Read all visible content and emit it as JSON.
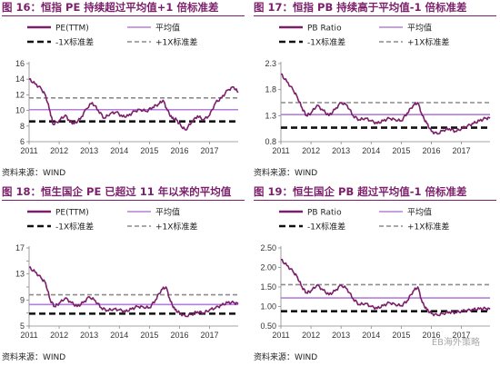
{
  "watermark": "EB海外策略",
  "panels": [
    {
      "title": "图 16：恒指 PE 持续超过平均值+1 倍标准差",
      "source": "资料来源：WIND",
      "chart_data": {
        "type": "line",
        "yticks": [
          6,
          8,
          10,
          12,
          14,
          16
        ],
        "ylim": [
          6,
          16
        ],
        "xticks": [
          "2011",
          "2012",
          "2013",
          "2014",
          "2015",
          "2016",
          "2017"
        ],
        "xlim": [
          2011.0,
          2017.95
        ],
        "legend": [
          {
            "label": "PE(TTM)",
            "color": "#7b1f6b",
            "style": "solid-thick"
          },
          {
            "label": "平均值",
            "color": "#b57edc",
            "style": "solid"
          },
          {
            "label": "-1X标准差",
            "color": "#111111",
            "style": "dash-thick"
          },
          {
            "label": "+1X标准差",
            "color": "#8c8c8c",
            "style": "dash"
          }
        ],
        "mean": 10.1,
        "minus1": 8.6,
        "plus1": 11.6,
        "series": [
          {
            "name": "PE(TTM)",
            "x": [
              2011.0,
              2011.2,
              2011.4,
              2011.55,
              2011.7,
              2011.8,
              2012.0,
              2012.2,
              2012.35,
              2012.5,
              2012.7,
              2012.9,
              2013.1,
              2013.3,
              2013.5,
              2013.7,
              2013.9,
              2014.1,
              2014.3,
              2014.5,
              2014.7,
              2014.9,
              2015.1,
              2015.3,
              2015.45,
              2015.6,
              2015.75,
              2015.9,
              2016.05,
              2016.2,
              2016.4,
              2016.6,
              2016.8,
              2017.0,
              2017.2,
              2017.4,
              2017.6,
              2017.8,
              2017.95
            ],
            "y": [
              14.0,
              13.4,
              12.8,
              11.9,
              9.8,
              8.2,
              8.7,
              9.4,
              8.6,
              8.3,
              8.9,
              10.2,
              11.0,
              10.0,
              9.0,
              9.6,
              9.8,
              9.2,
              9.3,
              9.9,
              10.1,
              9.9,
              10.4,
              10.8,
              11.3,
              10.0,
              9.0,
              8.8,
              8.0,
              7.5,
              8.5,
              9.3,
              8.8,
              9.4,
              11.0,
              11.6,
              12.6,
              13.0,
              12.3
            ]
          }
        ]
      }
    },
    {
      "title": "图 17：恒指 PB 持续高于平均值-1 倍标准差",
      "source": "资料来源：WIND",
      "chart_data": {
        "type": "line",
        "yticks": [
          0.8,
          1.3,
          1.8,
          2.3
        ],
        "ylim": [
          0.8,
          2.3
        ],
        "xticks": [
          "2011",
          "2012",
          "2013",
          "2014",
          "2015",
          "2016",
          "2017"
        ],
        "xlim": [
          2011.0,
          2017.95
        ],
        "legend": [
          {
            "label": "PB Ratio",
            "color": "#7b1f6b",
            "style": "solid-thick"
          },
          {
            "label": "平均值",
            "color": "#b57edc",
            "style": "solid"
          },
          {
            "label": "-1X标准差",
            "color": "#111111",
            "style": "dash-thick"
          },
          {
            "label": "+1X标准差",
            "color": "#8c8c8c",
            "style": "dash"
          }
        ],
        "mean": 1.32,
        "minus1": 1.07,
        "plus1": 1.55,
        "series": [
          {
            "name": "PB Ratio",
            "x": [
              2011.0,
              2011.2,
              2011.4,
              2011.55,
              2011.7,
              2011.85,
              2012.0,
              2012.2,
              2012.4,
              2012.6,
              2012.8,
              2013.0,
              2013.2,
              2013.4,
              2013.6,
              2013.8,
              2014.0,
              2014.2,
              2014.4,
              2014.6,
              2014.8,
              2015.0,
              2015.2,
              2015.4,
              2015.55,
              2015.7,
              2015.85,
              2016.0,
              2016.2,
              2016.4,
              2016.6,
              2016.8,
              2017.0,
              2017.2,
              2017.4,
              2017.6,
              2017.8,
              2017.95
            ],
            "y": [
              2.1,
              1.95,
              1.8,
              1.65,
              1.45,
              1.3,
              1.35,
              1.5,
              1.4,
              1.3,
              1.42,
              1.55,
              1.5,
              1.3,
              1.22,
              1.25,
              1.2,
              1.15,
              1.2,
              1.25,
              1.22,
              1.2,
              1.35,
              1.5,
              1.55,
              1.3,
              1.15,
              1.0,
              0.95,
              1.02,
              1.05,
              1.0,
              1.05,
              1.1,
              1.15,
              1.2,
              1.25,
              1.25
            ]
          }
        ]
      }
    },
    {
      "title": "图 18：恒生国企 PE 已超过 11 年以来的平均值",
      "source": "资料来源：WIND",
      "chart_data": {
        "type": "line",
        "yticks": [
          5,
          7,
          9,
          11,
          13,
          15,
          17
        ],
        "ylabels": [
          "5",
          "",
          "9",
          "",
          "13",
          "",
          "17"
        ],
        "ylim": [
          5,
          17
        ],
        "xticks": [
          "2011",
          "2012",
          "2013",
          "2014",
          "2015",
          "2016",
          "2017"
        ],
        "xlim": [
          2011.0,
          2017.95
        ],
        "legend": [
          {
            "label": "PE(TTM)",
            "color": "#7b1f6b",
            "style": "solid-thick"
          },
          {
            "label": "平均值",
            "color": "#b57edc",
            "style": "solid"
          },
          {
            "label": "-1X标准差",
            "color": "#111111",
            "style": "dash-thick"
          },
          {
            "label": "+1X标准差",
            "color": "#8c8c8c",
            "style": "dash"
          }
        ],
        "mean": 8.3,
        "minus1": 6.9,
        "plus1": 9.8,
        "series": [
          {
            "name": "PE(TTM)",
            "x": [
              2011.0,
              2011.2,
              2011.4,
              2011.55,
              2011.7,
              2011.85,
              2012.0,
              2012.2,
              2012.4,
              2012.6,
              2012.8,
              2013.0,
              2013.2,
              2013.4,
              2013.6,
              2013.8,
              2014.0,
              2014.2,
              2014.4,
              2014.6,
              2014.8,
              2015.0,
              2015.2,
              2015.4,
              2015.55,
              2015.7,
              2015.85,
              2016.0,
              2016.2,
              2016.4,
              2016.6,
              2016.8,
              2017.0,
              2017.2,
              2017.4,
              2017.6,
              2017.8,
              2017.95
            ],
            "y": [
              14.0,
              13.3,
              12.4,
              11.6,
              9.0,
              8.0,
              8.5,
              9.3,
              8.6,
              8.0,
              8.6,
              9.5,
              8.9,
              7.8,
              7.4,
              7.6,
              7.5,
              7.2,
              7.6,
              8.0,
              7.9,
              7.8,
              9.0,
              10.6,
              11.0,
              8.8,
              7.5,
              7.0,
              6.5,
              6.8,
              7.2,
              7.0,
              7.5,
              7.8,
              8.2,
              8.6,
              8.6,
              8.4
            ]
          }
        ]
      }
    },
    {
      "title": "图 19：恒生国企 PB 超过平均值-1 倍标准差",
      "source": "资料来源：WIND",
      "chart_data": {
        "type": "line",
        "yticks": [
          0.5,
          1.0,
          1.5,
          2.0,
          2.5
        ],
        "ylabels": [
          "0.50",
          "1.00",
          "1.50",
          "2.00",
          "2.50"
        ],
        "ylim": [
          0.5,
          2.5
        ],
        "xticks": [
          "2011",
          "2012",
          "2013",
          "2014",
          "2015",
          "2016",
          "2017"
        ],
        "xlim": [
          2011.0,
          2017.95
        ],
        "legend": [
          {
            "label": "PB Ratio",
            "color": "#7b1f6b",
            "style": "solid-thick"
          },
          {
            "label": "平均值",
            "color": "#b57edc",
            "style": "solid"
          },
          {
            "label": "-1X标准差",
            "color": "#111111",
            "style": "dash-thick"
          },
          {
            "label": "+1X标准差",
            "color": "#8c8c8c",
            "style": "dash"
          }
        ],
        "mean": 1.22,
        "minus1": 0.88,
        "plus1": 1.56,
        "series": [
          {
            "name": "PB Ratio",
            "x": [
              2011.0,
              2011.2,
              2011.4,
              2011.55,
              2011.7,
              2011.85,
              2012.0,
              2012.2,
              2012.4,
              2012.6,
              2012.8,
              2013.0,
              2013.2,
              2013.4,
              2013.6,
              2013.8,
              2014.0,
              2014.2,
              2014.4,
              2014.6,
              2014.8,
              2015.0,
              2015.2,
              2015.4,
              2015.55,
              2015.7,
              2015.85,
              2016.0,
              2016.2,
              2016.4,
              2016.6,
              2016.8,
              2017.0,
              2017.2,
              2017.4,
              2017.6,
              2017.8,
              2017.95
            ],
            "y": [
              2.2,
              2.05,
              1.9,
              1.75,
              1.5,
              1.35,
              1.4,
              1.55,
              1.42,
              1.3,
              1.4,
              1.55,
              1.45,
              1.2,
              1.05,
              1.08,
              1.0,
              0.95,
              1.02,
              1.1,
              1.05,
              1.02,
              1.15,
              1.4,
              1.5,
              1.1,
              0.92,
              0.82,
              0.78,
              0.82,
              0.86,
              0.85,
              0.88,
              0.9,
              0.92,
              0.94,
              0.95,
              0.93
            ]
          }
        ]
      }
    }
  ]
}
